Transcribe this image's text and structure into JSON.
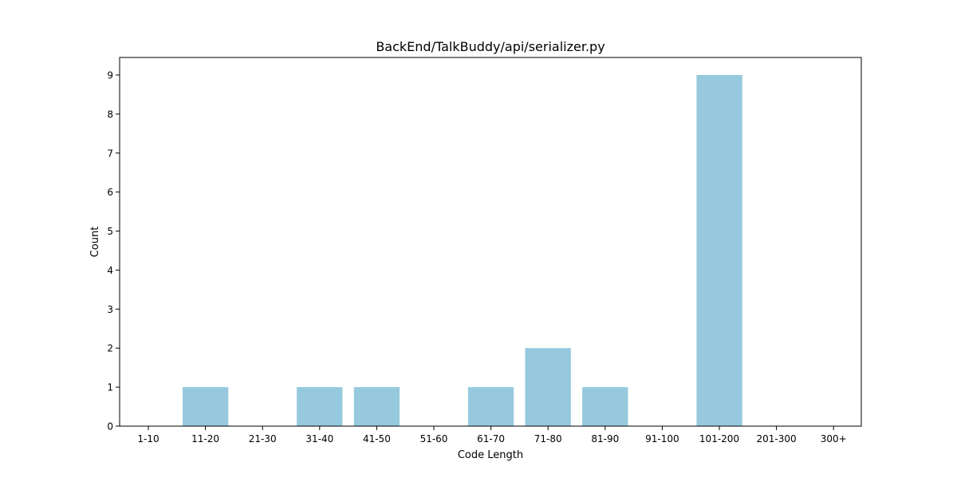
{
  "chart_data": {
    "type": "bar",
    "title": "BackEnd/TalkBuddy/api/serializer.py",
    "xlabel": "Code Length",
    "ylabel": "Count",
    "categories": [
      "1-10",
      "11-20",
      "21-30",
      "31-40",
      "41-50",
      "51-60",
      "61-70",
      "71-80",
      "81-90",
      "91-100",
      "101-200",
      "201-300",
      "300+"
    ],
    "values": [
      0,
      1,
      0,
      1,
      1,
      0,
      1,
      2,
      1,
      0,
      9,
      0,
      0
    ],
    "ylim": [
      0,
      9.45
    ],
    "yticks": [
      0,
      1,
      2,
      3,
      4,
      5,
      6,
      7,
      8,
      9
    ],
    "bar_color": "#96c9dd",
    "grid": false,
    "legend": "none"
  }
}
